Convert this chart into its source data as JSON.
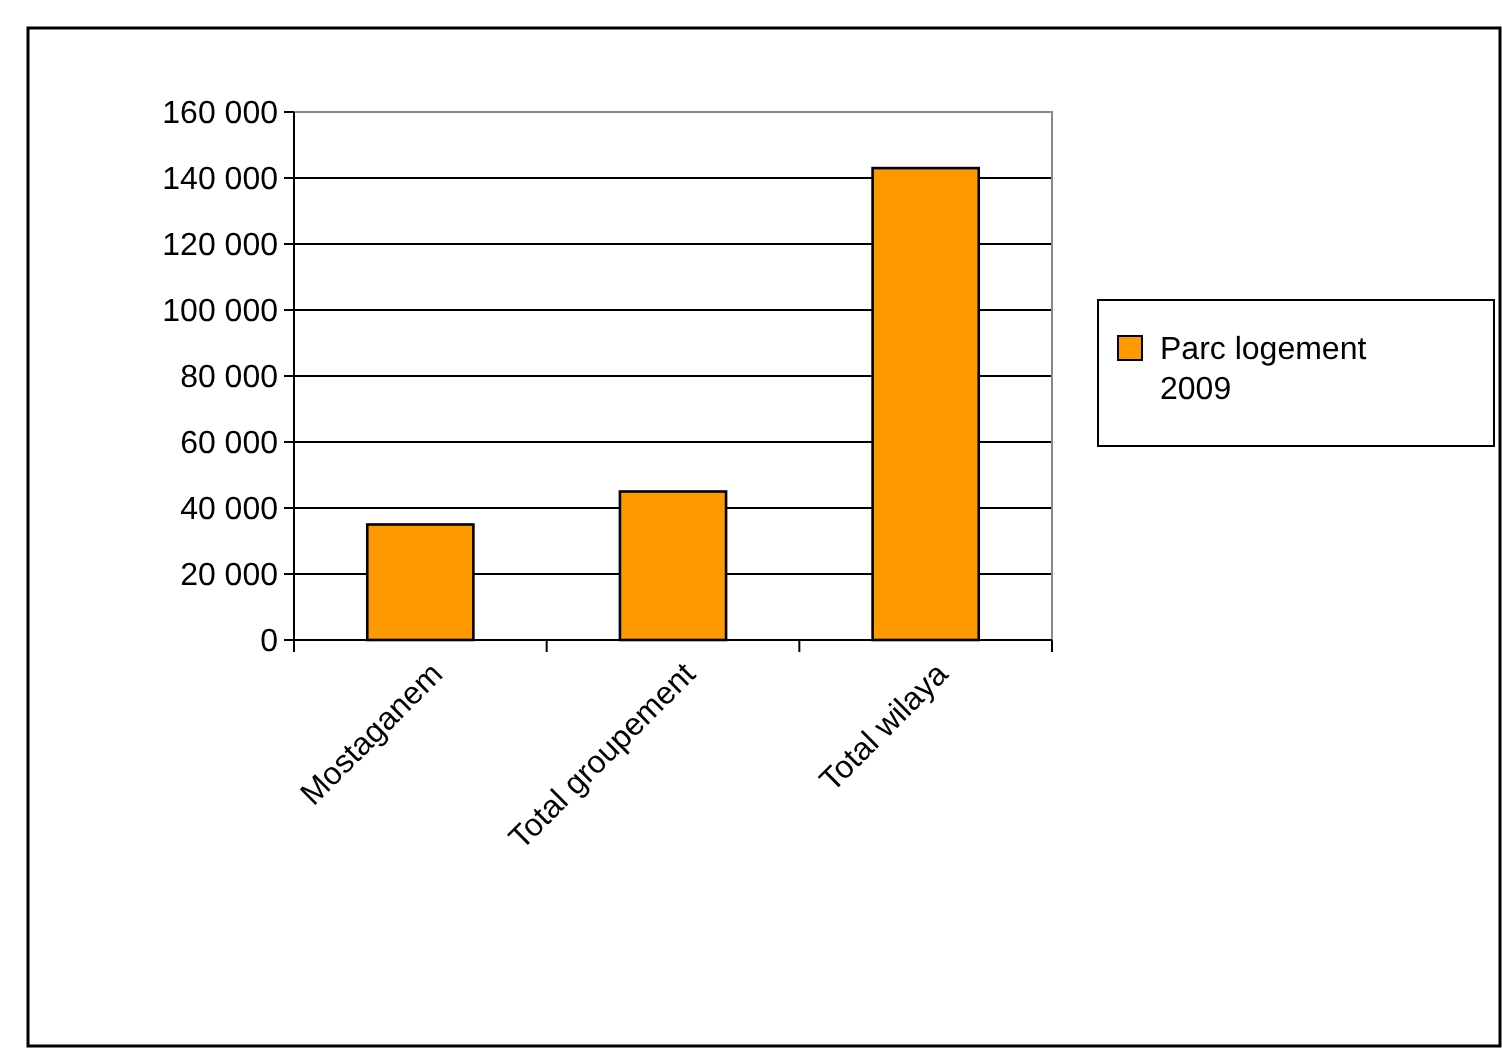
{
  "chart_data": {
    "type": "bar",
    "categories": [
      "Mostaganem",
      "Total groupement",
      "Total wilaya"
    ],
    "series": [
      {
        "name": "Parc logement 2009",
        "color": "#ff9900",
        "values": [
          35000,
          45000,
          143000
        ]
      }
    ],
    "ylim": [
      0,
      160000
    ],
    "yticks": [
      {
        "value": 0,
        "label": "0"
      },
      {
        "value": 20000,
        "label": "20 000"
      },
      {
        "value": 40000,
        "label": "40 000"
      },
      {
        "value": 60000,
        "label": "60 000"
      },
      {
        "value": 80000,
        "label": "80 000"
      },
      {
        "value": 100000,
        "label": "100 000"
      },
      {
        "value": 120000,
        "label": "120 000"
      },
      {
        "value": 140000,
        "label": "140 000"
      },
      {
        "value": 160000,
        "label": "160 000"
      }
    ],
    "grid": "y",
    "legend": "right"
  }
}
